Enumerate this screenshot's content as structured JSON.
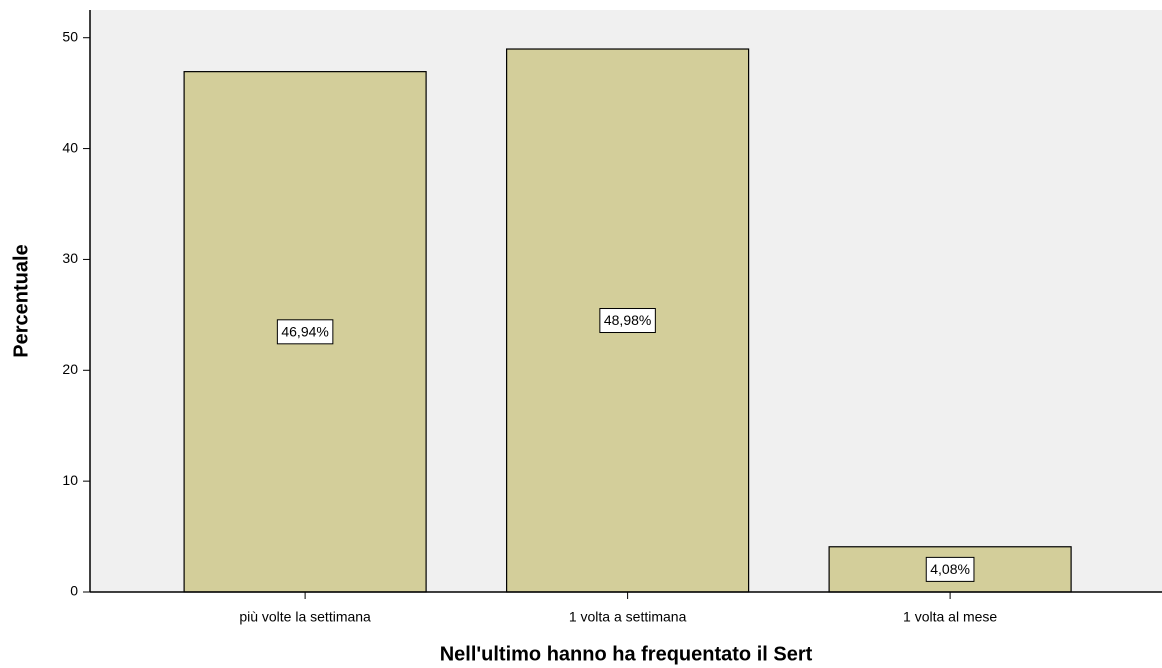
{
  "chart_data": {
    "type": "bar",
    "x_label": "Nell'ultimo hanno ha frequentato il Sert",
    "y_label": "Percentuale",
    "categories": [
      "più volte la settimana",
      "1 volta a settimana",
      "1 volta al mese"
    ],
    "values": [
      46.94,
      48.98,
      4.08
    ],
    "value_labels": [
      "46,94%",
      "48,98%",
      "4,08%"
    ],
    "color": "#d3ce9a",
    "ylim": [
      0,
      52.5
    ],
    "yticks": [
      0,
      10,
      20,
      30,
      40,
      50
    ],
    "grid": false
  }
}
